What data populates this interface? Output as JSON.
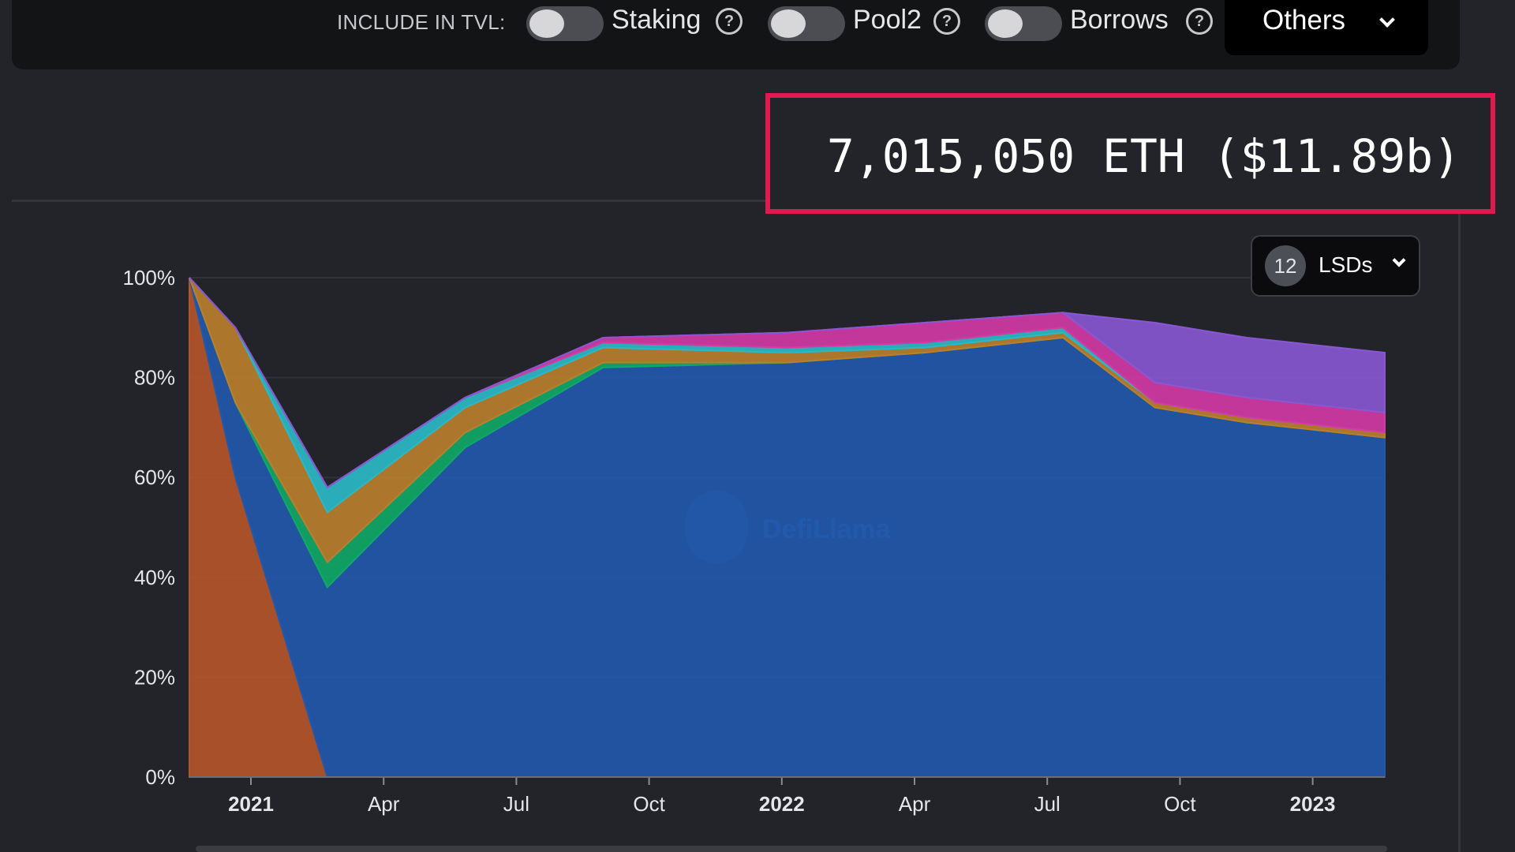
{
  "options_bar": {
    "include_label": "INCLUDE IN TVL:",
    "toggles": [
      {
        "label": "Staking",
        "on": false
      },
      {
        "label": "Pool2",
        "on": false
      },
      {
        "label": "Borrows",
        "on": false
      }
    ],
    "others_label": "Others"
  },
  "readout": {
    "value": "7,015,050 ETH ($11.89b)"
  },
  "lsd_selector": {
    "count": "12",
    "label": "LSDs"
  },
  "watermark": "DefiLlama",
  "colors": {
    "background": "#222429",
    "highlight_border": "#e01a4f",
    "series_blue": "#2258ab",
    "series_orange": "#b4552a",
    "series_salmon": "#c0725e",
    "series_green": "#10a867",
    "series_amber": "#b97f2d",
    "series_cyan": "#2bb8c6",
    "series_purple": "#8857d1",
    "series_pink": "#d33aa4"
  },
  "chart_data": {
    "type": "area",
    "stacked": true,
    "normalized_percent": true,
    "ylim": [
      0,
      100
    ],
    "y_ticks": [
      "0%",
      "20%",
      "40%",
      "60%",
      "80%",
      "100%"
    ],
    "x_ticks": [
      "2021",
      "Apr",
      "Jul",
      "Oct",
      "2022",
      "Apr",
      "Jul",
      "Oct",
      "2023"
    ],
    "x_bold_ticks": [
      "2021",
      "2022",
      "2023"
    ],
    "x": [
      "2020-12",
      "2021-01",
      "2021-03",
      "2021-06",
      "2021-09",
      "2022-01",
      "2022-04",
      "2022-07",
      "2022-09",
      "2022-11",
      "2023-02"
    ],
    "series": [
      {
        "color": "#b4552a",
        "values": [
          100,
          60,
          0,
          0,
          0,
          0,
          0,
          0,
          0,
          0,
          0
        ]
      },
      {
        "color": "#2258ab",
        "values": [
          0,
          15,
          38,
          66,
          82,
          83,
          85,
          88,
          74,
          71,
          68
        ]
      },
      {
        "color": "#10a867",
        "values": [
          0,
          0,
          5,
          3,
          1,
          0,
          0,
          0,
          0,
          0,
          0
        ]
      },
      {
        "color": "#b97f2d",
        "values": [
          0,
          15,
          10,
          5,
          3,
          2,
          1,
          1,
          1,
          1,
          1
        ]
      },
      {
        "color": "#2bb8c6",
        "values": [
          0,
          0,
          5,
          2,
          1,
          1,
          1,
          1,
          0,
          0,
          0
        ]
      },
      {
        "color": "#d33aa4",
        "values": [
          0,
          0,
          0,
          0,
          1,
          3,
          4,
          3,
          4,
          4,
          4
        ]
      },
      {
        "color": "#8857d1",
        "values": [
          0,
          0,
          0,
          0,
          0,
          0,
          0,
          0,
          12,
          12,
          12
        ]
      }
    ]
  }
}
